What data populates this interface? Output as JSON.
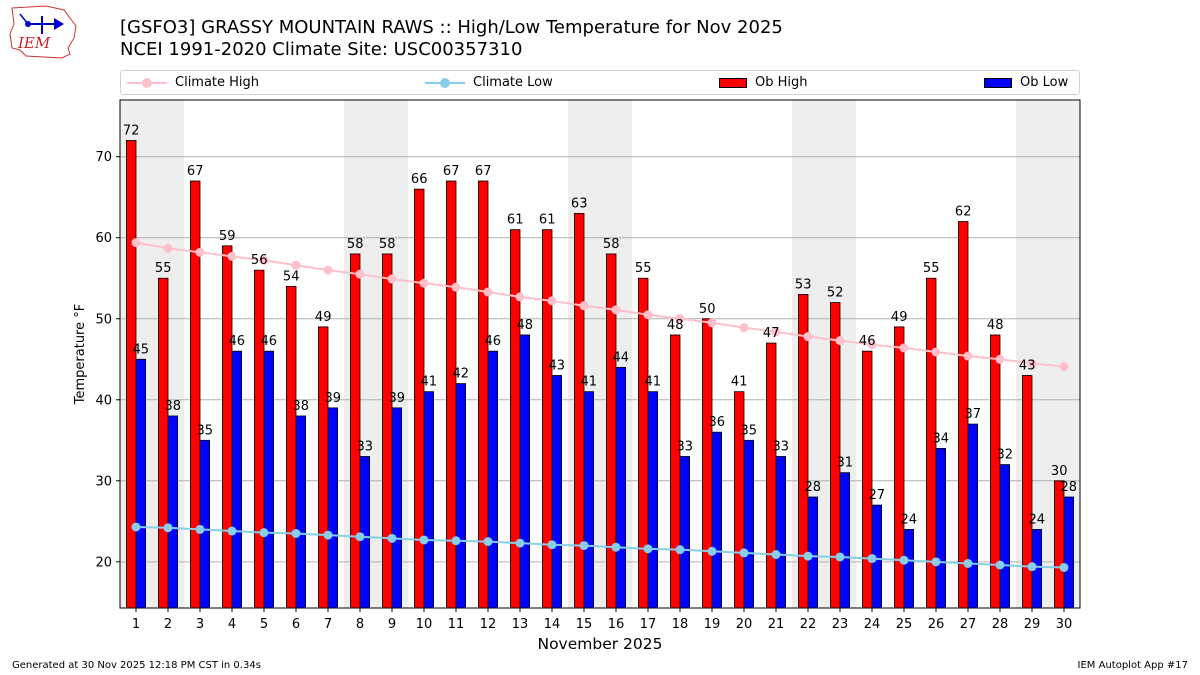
{
  "header": {
    "logo_text": "IEM",
    "title_line1": "[GSFO3] GRASSY MOUNTAIN RAWS :: High/Low Temperature for Nov 2025",
    "title_line2": "NCEI 1991-2020 Climate Site: USC00357310"
  },
  "legend": {
    "climate_high": "Climate High",
    "climate_low": "Climate Low",
    "ob_high": "Ob High",
    "ob_low": "Ob Low"
  },
  "footer": {
    "left": "Generated at 30 Nov 2025 12:18 PM CST in 0.34s",
    "right": "IEM Autoplot App #17"
  },
  "colors": {
    "ob_high": "#ff0000",
    "ob_low": "#0000ff",
    "climate_high": "#ffc0cb",
    "climate_low": "#87ceeb",
    "weekend_shade": "#eeeeee",
    "grid": "#b0b0b0"
  },
  "chart_data": {
    "type": "bar",
    "xlabel": "November 2025",
    "ylabel": "Temperature °F",
    "xlim": [
      0.5,
      30.5
    ],
    "ylim": [
      14.3,
      77
    ],
    "yticks": [
      20,
      30,
      40,
      50,
      60,
      70
    ],
    "grid": "horizontal",
    "legend_position": "top",
    "categories": [
      1,
      2,
      3,
      4,
      5,
      6,
      7,
      8,
      9,
      10,
      11,
      12,
      13,
      14,
      15,
      16,
      17,
      18,
      19,
      20,
      21,
      22,
      23,
      24,
      25,
      26,
      27,
      28,
      29,
      30
    ],
    "shaded_days": [
      1,
      2,
      8,
      9,
      15,
      16,
      22,
      23,
      29,
      30
    ],
    "series": [
      {
        "name": "Ob High",
        "type": "bar",
        "values": [
          72,
          55,
          67,
          59,
          56,
          54,
          49,
          58,
          58,
          66,
          67,
          67,
          61,
          61,
          63,
          58,
          55,
          48,
          50,
          41,
          47,
          53,
          52,
          46,
          49,
          55,
          62,
          48,
          43,
          30
        ]
      },
      {
        "name": "Ob Low",
        "type": "bar",
        "values": [
          45,
          38,
          35,
          46,
          46,
          38,
          39,
          33,
          39,
          41,
          42,
          46,
          48,
          43,
          41,
          44,
          41,
          33,
          36,
          35,
          33,
          28,
          31,
          27,
          24,
          34,
          37,
          32,
          24,
          28
        ]
      },
      {
        "name": "Climate High",
        "type": "line",
        "values": [
          59.4,
          58.7,
          58.2,
          57.7,
          57.2,
          56.6,
          56.0,
          55.5,
          54.9,
          54.4,
          53.9,
          53.3,
          52.7,
          52.2,
          51.6,
          51.1,
          50.5,
          50.0,
          49.5,
          48.9,
          48.4,
          47.8,
          47.3,
          46.8,
          46.4,
          45.9,
          45.4,
          45.0,
          44.5,
          44.1
        ]
      },
      {
        "name": "Climate Low",
        "type": "line",
        "values": [
          24.3,
          24.2,
          24.0,
          23.8,
          23.6,
          23.5,
          23.3,
          23.1,
          22.9,
          22.7,
          22.6,
          22.5,
          22.3,
          22.1,
          22.0,
          21.8,
          21.6,
          21.5,
          21.3,
          21.1,
          20.9,
          20.7,
          20.6,
          20.4,
          20.2,
          20.0,
          19.8,
          19.6,
          19.4,
          19.3
        ]
      }
    ]
  }
}
